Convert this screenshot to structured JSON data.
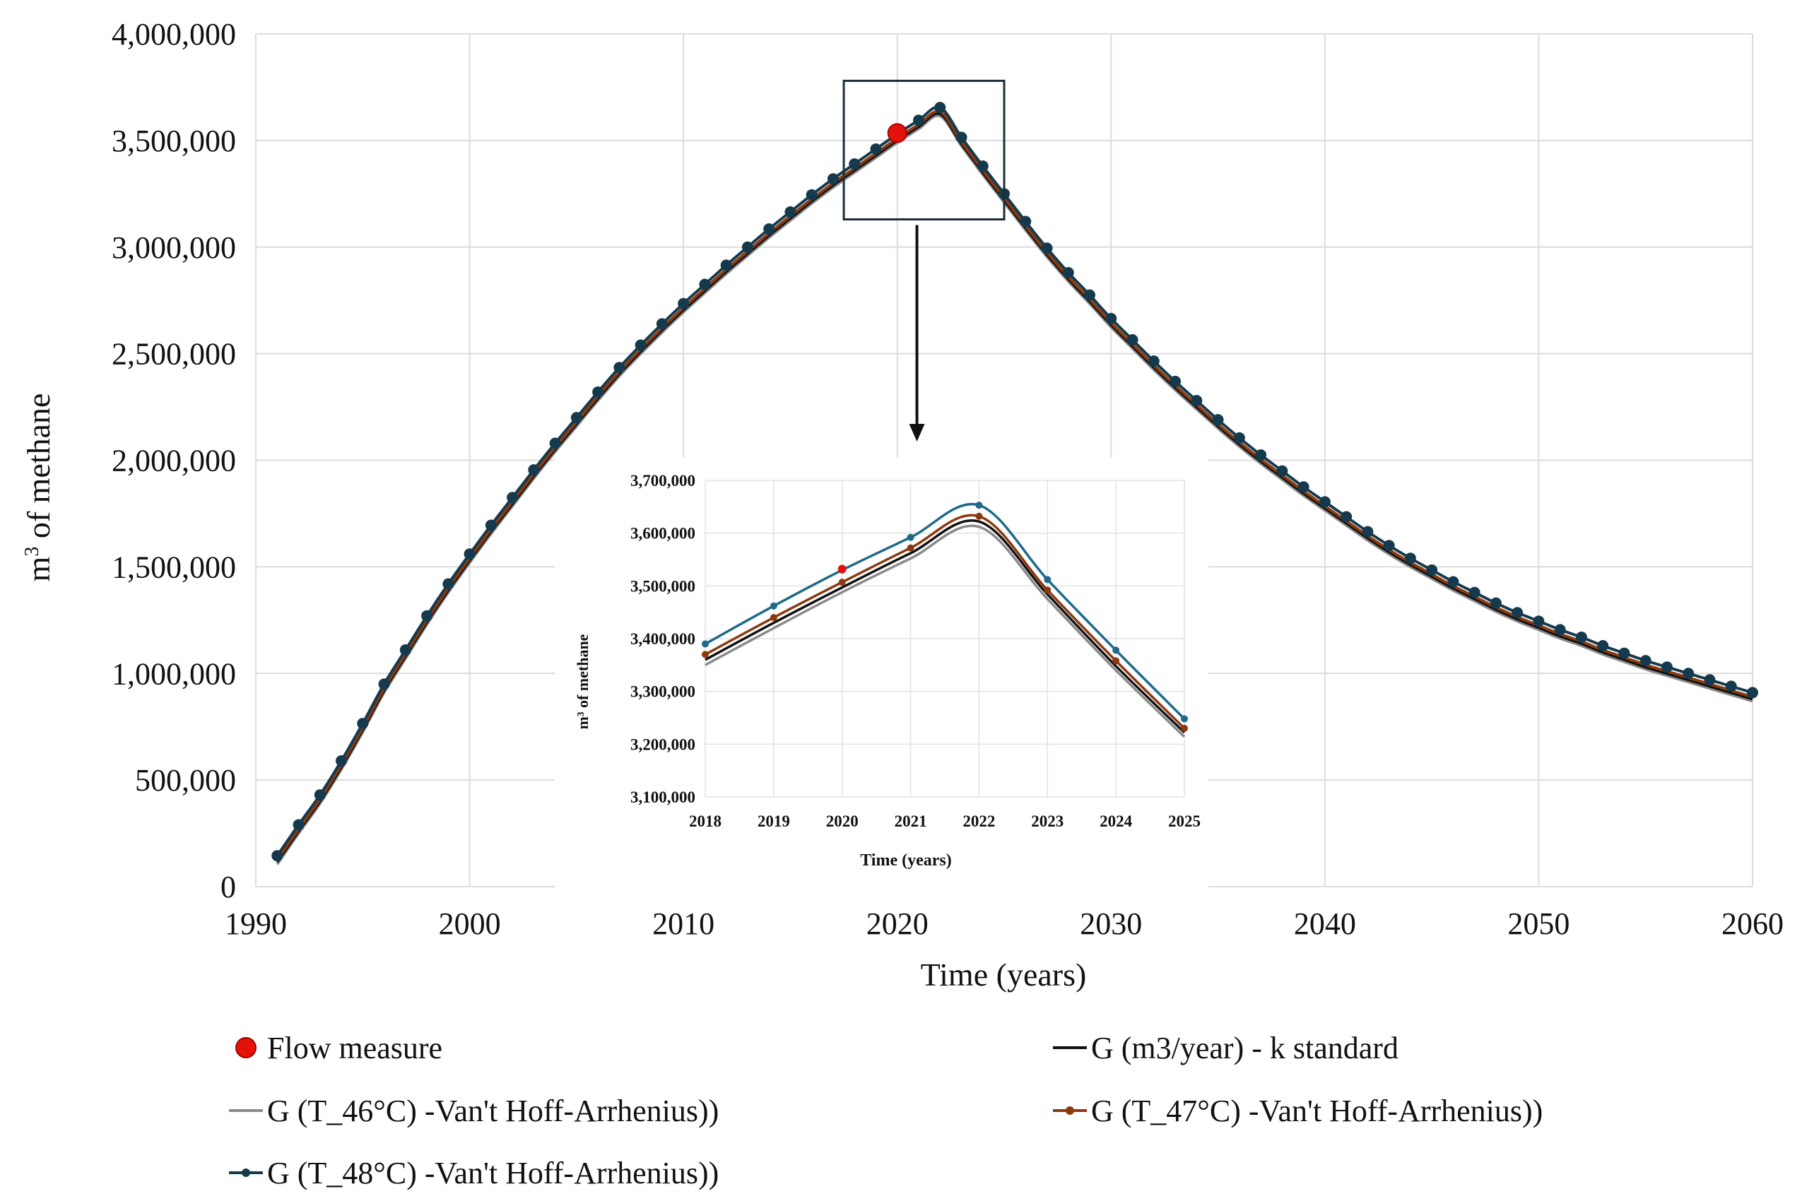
{
  "chart_data": [
    {
      "type": "line",
      "role": "main",
      "title": "",
      "xlabel": "Time (years)",
      "ylabel": "m³ of methane",
      "ylabel_base": "m",
      "ylabel_sup": "3",
      "ylabel_rest": " of methane",
      "xlim": [
        1990,
        2060
      ],
      "ylim": [
        0,
        4000000
      ],
      "xticks": [
        1990,
        2000,
        2010,
        2020,
        2030,
        2040,
        2050,
        2060
      ],
      "xtick_labels": [
        "1990",
        "2000",
        "2010",
        "2020",
        "2030",
        "2040",
        "2050",
        "2060"
      ],
      "yticks": [
        0,
        500000,
        1000000,
        1500000,
        2000000,
        2500000,
        3000000,
        3500000,
        4000000
      ],
      "ytick_labels": [
        "0",
        "500,000",
        "1,000,000",
        "1,500,000",
        "2,000,000",
        "2,500,000",
        "3,000,000",
        "3,500,000",
        "4,000,000"
      ],
      "grid": true,
      "x": [
        1991,
        1992,
        1993,
        1994,
        1995,
        1996,
        1997,
        1998,
        1999,
        2000,
        2001,
        2002,
        2003,
        2004,
        2005,
        2006,
        2007,
        2008,
        2009,
        2010,
        2011,
        2012,
        2013,
        2014,
        2015,
        2016,
        2017,
        2018,
        2019,
        2020,
        2021,
        2022,
        2023,
        2024,
        2025,
        2026,
        2027,
        2028,
        2029,
        2030,
        2031,
        2032,
        2033,
        2034,
        2035,
        2036,
        2037,
        2038,
        2039,
        2040,
        2041,
        2042,
        2043,
        2044,
        2045,
        2046,
        2047,
        2048,
        2049,
        2050,
        2051,
        2052,
        2053,
        2054,
        2055,
        2056,
        2057,
        2058,
        2059,
        2060
      ],
      "series": [
        {
          "name": "G (T_48°C) -Van't Hoff-Arrhenius))",
          "color": "#163a4d",
          "markers": true,
          "values": [
            145000,
            290000,
            430000,
            590000,
            765000,
            950000,
            1110000,
            1270000,
            1420000,
            1560000,
            1695000,
            1825000,
            1955000,
            2080000,
            2200000,
            2320000,
            2435000,
            2540000,
            2640000,
            2735000,
            2825000,
            2915000,
            3000000,
            3085000,
            3165000,
            3245000,
            3320000,
            3390000,
            3460000,
            3530000,
            3595000,
            3655000,
            3515000,
            3380000,
            3250000,
            3120000,
            2995000,
            2880000,
            2775000,
            2665000,
            2565000,
            2465000,
            2370000,
            2280000,
            2190000,
            2105000,
            2025000,
            1950000,
            1875000,
            1805000,
            1735000,
            1665000,
            1600000,
            1540000,
            1485000,
            1430000,
            1380000,
            1330000,
            1285000,
            1245000,
            1205000,
            1170000,
            1130000,
            1095000,
            1060000,
            1030000,
            1000000,
            970000,
            940000,
            910000
          ]
        },
        {
          "name": "G (T_47°C) -Van't Hoff-Arrhenius))",
          "color": "#8b3a10",
          "markers": false,
          "offset": -20000
        },
        {
          "name": "G (T_46°C) -Van't Hoff-Arrhenius))",
          "color": "#8a8a8a",
          "markers": false,
          "offset": -40000
        },
        {
          "name": "G (m3/year) - k standard",
          "color": "#111111",
          "markers": false,
          "offset": -30000
        }
      ],
      "flow_measure": {
        "name": "Flow measure",
        "x": 2020,
        "y": 3535000,
        "color": "#e3120b"
      },
      "zoom_box": {
        "x": [
          2017.5,
          2025.0
        ],
        "y": [
          3130000,
          3780000
        ]
      }
    },
    {
      "type": "line",
      "role": "inset",
      "xlabel": "Time (years)",
      "ylabel": "m³ of methane",
      "xlim": [
        2018,
        2025
      ],
      "ylim": [
        3100000,
        3700000
      ],
      "xticks": [
        2018,
        2019,
        2020,
        2021,
        2022,
        2023,
        2024,
        2025
      ],
      "xtick_labels": [
        "2018",
        "2019",
        "2020",
        "2021",
        "2022",
        "2023",
        "2024",
        "2025"
      ],
      "yticks": [
        3100000,
        3200000,
        3300000,
        3400000,
        3500000,
        3600000,
        3700000
      ],
      "ytick_labels": [
        "3,100,000",
        "3,200,000",
        "3,300,000",
        "3,400,000",
        "3,500,000",
        "3,600,000",
        "3,700,000"
      ],
      "grid": true,
      "x": [
        2018,
        2019,
        2020,
        2021,
        2022,
        2023,
        2024,
        2025
      ],
      "series": [
        {
          "name": "G (T_48°C) -Van't Hoff-Arrhenius))",
          "color": "#1f6a8a",
          "markers": true,
          "values": [
            3390000,
            3462000,
            3530000,
            3592000,
            3653000,
            3512000,
            3378000,
            3248000
          ]
        },
        {
          "name": "G (T_47°C) -Van't Hoff-Arrhenius))",
          "color": "#8b3a10",
          "markers": true,
          "values": [
            3370000,
            3440000,
            3507000,
            3572000,
            3632000,
            3492000,
            3358000,
            3230000
          ]
        },
        {
          "name": "G (m3/year) - k standard",
          "color": "#111111",
          "markers": false,
          "values": [
            3360000,
            3430000,
            3497000,
            3562000,
            3622000,
            3484000,
            3348000,
            3222000
          ]
        },
        {
          "name": "G (T_46°C) -Van't Hoff-Arrhenius))",
          "color": "#8a8a8a",
          "markers": false,
          "values": [
            3350000,
            3420000,
            3488000,
            3552000,
            3612000,
            3475000,
            3340000,
            3214000
          ]
        }
      ],
      "flow_measure": {
        "name": "Flow measure",
        "x": 2020,
        "y": 3532000,
        "color": "#e3120b"
      }
    }
  ],
  "legend": {
    "placement": "bottom",
    "entries": [
      {
        "label": "Flow measure",
        "color": "#e3120b",
        "kind": "dot"
      },
      {
        "label": "G (m3/year) - k standard",
        "color": "#111111",
        "kind": "line"
      },
      {
        "label": "G (T_46°C) -Van't Hoff-Arrhenius))",
        "color": "#8a8a8a",
        "kind": "line"
      },
      {
        "label": "G (T_47°C) -Van't Hoff-Arrhenius))",
        "color": "#8b3a10",
        "kind": "line-marker"
      },
      {
        "label": "G (T_48°C) -Van't Hoff-Arrhenius))",
        "color": "#163a4d",
        "kind": "line-marker"
      }
    ]
  }
}
